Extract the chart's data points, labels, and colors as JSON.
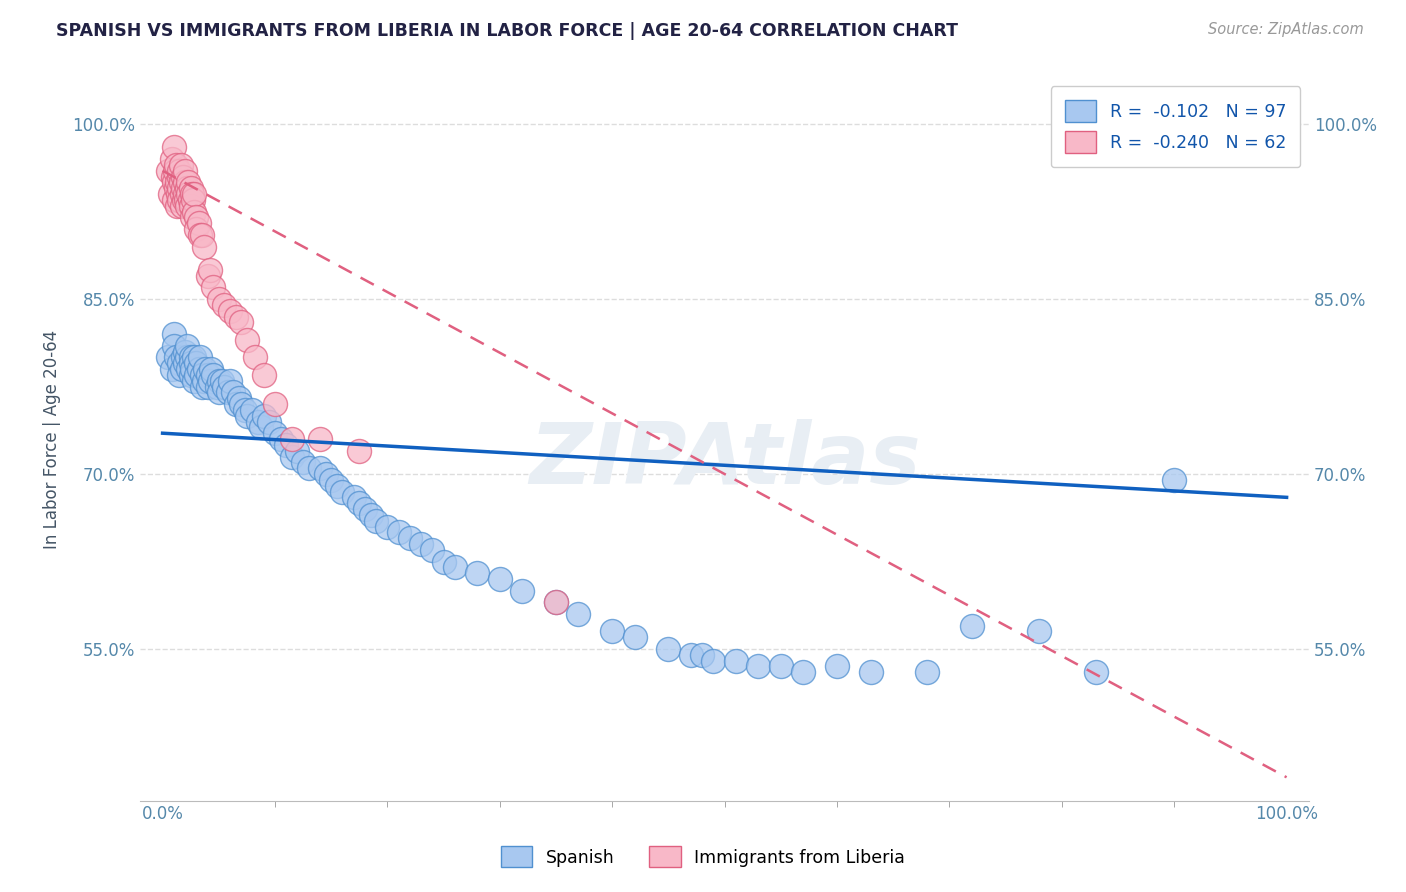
{
  "title": "SPANISH VS IMMIGRANTS FROM LIBERIA IN LABOR FORCE | AGE 20-64 CORRELATION CHART",
  "source": "Source: ZipAtlas.com",
  "ylabel": "In Labor Force | Age 20-64",
  "xlim": [
    -0.02,
    1.02
  ],
  "ylim": [
    0.42,
    1.04
  ],
  "yticks": [
    0.55,
    0.7,
    0.85,
    1.0
  ],
  "ytick_labels": [
    "55.0%",
    "70.0%",
    "85.0%",
    "100.0%"
  ],
  "legend_r1": "R =  -0.102",
  "legend_n1": "N = 97",
  "legend_r2": "R =  -0.240",
  "legend_n2": "N = 62",
  "blue_fill": "#A8C8F0",
  "blue_edge": "#5090D0",
  "pink_fill": "#F8B8C8",
  "pink_edge": "#E06080",
  "blue_line": "#1060C0",
  "pink_line": "#E06080",
  "axis_color": "#5588AA",
  "grid_color": "#DDDDDD",
  "title_color": "#222244",
  "source_color": "#999999",
  "watermark_color": "#E8EEF4",
  "spanish_x": [
    0.005,
    0.008,
    0.01,
    0.01,
    0.012,
    0.015,
    0.015,
    0.017,
    0.018,
    0.02,
    0.02,
    0.022,
    0.022,
    0.023,
    0.025,
    0.025,
    0.025,
    0.026,
    0.028,
    0.028,
    0.03,
    0.03,
    0.032,
    0.033,
    0.035,
    0.035,
    0.037,
    0.038,
    0.04,
    0.04,
    0.042,
    0.043,
    0.045,
    0.048,
    0.05,
    0.05,
    0.053,
    0.055,
    0.058,
    0.06,
    0.063,
    0.065,
    0.068,
    0.07,
    0.073,
    0.075,
    0.08,
    0.085,
    0.088,
    0.09,
    0.095,
    0.1,
    0.105,
    0.11,
    0.115,
    0.12,
    0.125,
    0.13,
    0.14,
    0.145,
    0.15,
    0.155,
    0.16,
    0.17,
    0.175,
    0.18,
    0.185,
    0.19,
    0.2,
    0.21,
    0.22,
    0.23,
    0.24,
    0.25,
    0.26,
    0.28,
    0.3,
    0.32,
    0.35,
    0.37,
    0.4,
    0.42,
    0.45,
    0.47,
    0.48,
    0.49,
    0.51,
    0.53,
    0.55,
    0.57,
    0.6,
    0.63,
    0.68,
    0.72,
    0.78,
    0.83,
    0.9
  ],
  "spanish_y": [
    0.8,
    0.79,
    0.82,
    0.81,
    0.8,
    0.795,
    0.785,
    0.79,
    0.8,
    0.805,
    0.795,
    0.8,
    0.81,
    0.79,
    0.8,
    0.795,
    0.785,
    0.79,
    0.8,
    0.78,
    0.795,
    0.785,
    0.79,
    0.8,
    0.785,
    0.775,
    0.78,
    0.79,
    0.785,
    0.775,
    0.78,
    0.79,
    0.785,
    0.775,
    0.78,
    0.77,
    0.78,
    0.775,
    0.77,
    0.78,
    0.77,
    0.76,
    0.765,
    0.76,
    0.755,
    0.75,
    0.755,
    0.745,
    0.74,
    0.75,
    0.745,
    0.735,
    0.73,
    0.725,
    0.715,
    0.72,
    0.71,
    0.705,
    0.705,
    0.7,
    0.695,
    0.69,
    0.685,
    0.68,
    0.675,
    0.67,
    0.665,
    0.66,
    0.655,
    0.65,
    0.645,
    0.64,
    0.635,
    0.625,
    0.62,
    0.615,
    0.61,
    0.6,
    0.59,
    0.58,
    0.565,
    0.56,
    0.55,
    0.545,
    0.545,
    0.54,
    0.54,
    0.535,
    0.535,
    0.53,
    0.535,
    0.53,
    0.53,
    0.57,
    0.565,
    0.53,
    0.695
  ],
  "liberia_x": [
    0.005,
    0.007,
    0.008,
    0.009,
    0.01,
    0.01,
    0.01,
    0.011,
    0.012,
    0.012,
    0.013,
    0.013,
    0.014,
    0.015,
    0.015,
    0.015,
    0.015,
    0.016,
    0.016,
    0.017,
    0.017,
    0.018,
    0.018,
    0.019,
    0.02,
    0.02,
    0.02,
    0.021,
    0.022,
    0.022,
    0.023,
    0.023,
    0.024,
    0.025,
    0.025,
    0.026,
    0.026,
    0.027,
    0.028,
    0.028,
    0.03,
    0.03,
    0.032,
    0.033,
    0.035,
    0.037,
    0.04,
    0.042,
    0.045,
    0.05,
    0.055,
    0.06,
    0.065,
    0.07,
    0.075,
    0.082,
    0.09,
    0.1,
    0.115,
    0.14,
    0.175,
    0.35
  ],
  "liberia_y": [
    0.96,
    0.94,
    0.97,
    0.955,
    0.95,
    0.935,
    0.98,
    0.96,
    0.945,
    0.965,
    0.95,
    0.93,
    0.94,
    0.955,
    0.945,
    0.935,
    0.96,
    0.95,
    0.965,
    0.94,
    0.93,
    0.955,
    0.945,
    0.935,
    0.95,
    0.94,
    0.96,
    0.935,
    0.945,
    0.93,
    0.95,
    0.94,
    0.935,
    0.945,
    0.93,
    0.94,
    0.92,
    0.935,
    0.925,
    0.94,
    0.92,
    0.91,
    0.915,
    0.905,
    0.905,
    0.895,
    0.87,
    0.875,
    0.86,
    0.85,
    0.845,
    0.84,
    0.835,
    0.83,
    0.815,
    0.8,
    0.785,
    0.76,
    0.73,
    0.73,
    0.72,
    0.59
  ],
  "blue_trendline_start_x": 0.0,
  "blue_trendline_start_y": 0.735,
  "blue_trendline_end_x": 1.0,
  "blue_trendline_end_y": 0.68,
  "pink_trendline_start_x": 0.0,
  "pink_trendline_start_y": 0.96,
  "pink_trendline_end_x": 1.0,
  "pink_trendline_end_y": 0.44
}
